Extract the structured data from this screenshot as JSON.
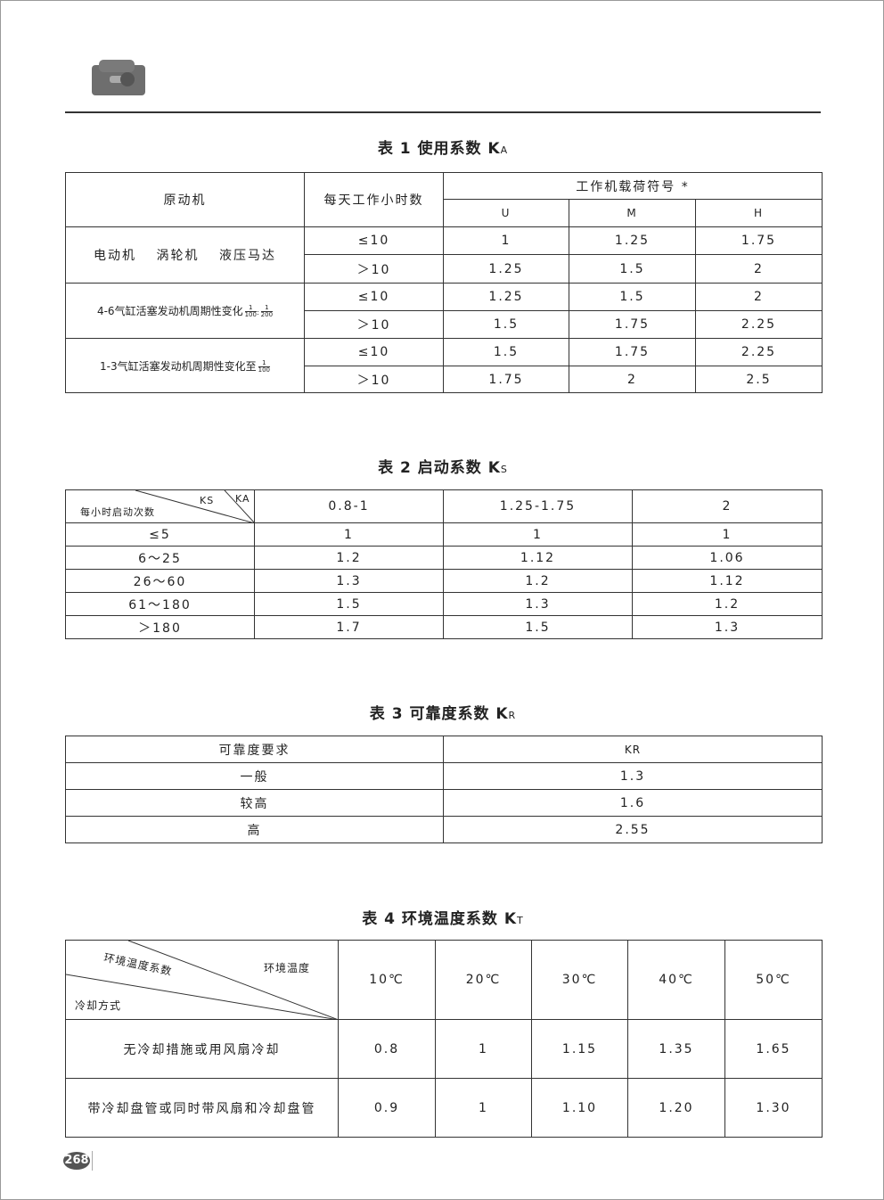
{
  "page_number": "268",
  "table1": {
    "title": "表 1  使用系数 K",
    "title_sub": "A",
    "headers": {
      "prime_mover": "原动机",
      "hours": "每天工作小时数",
      "load": "工作机载荷符号 *",
      "u": "U",
      "m": "M",
      "h": "H"
    },
    "groups": [
      {
        "label": "电动机　 涡轮机　 液压马达",
        "frac": [],
        "rows": [
          {
            "hours": "≤10",
            "u": "1",
            "m": "1.25",
            "h": "1.75"
          },
          {
            "hours": "＞10",
            "u": "1.25",
            "m": "1.5",
            "h": "2"
          }
        ]
      },
      {
        "label": "4-6气缸活塞发动机周期性变化",
        "frac": [
          {
            "num": "1",
            "den": "100"
          },
          {
            "num": "1",
            "den": "200"
          }
        ],
        "sep": ":",
        "rows": [
          {
            "hours": "≤10",
            "u": "1.25",
            "m": "1.5",
            "h": "2"
          },
          {
            "hours": "＞10",
            "u": "1.5",
            "m": "1.75",
            "h": "2.25"
          }
        ]
      },
      {
        "label": "1-3气缸活塞发动机周期性变化至",
        "frac": [
          {
            "num": "1",
            "den": "100"
          }
        ],
        "rows": [
          {
            "hours": "≤10",
            "u": "1.5",
            "m": "1.75",
            "h": "2.25"
          },
          {
            "hours": "＞10",
            "u": "1.75",
            "m": "2",
            "h": "2.5"
          }
        ]
      }
    ]
  },
  "table2": {
    "title": "表 2  启动系数 K",
    "title_sub": "S",
    "corner": {
      "row_label": "每小时启动次数",
      "ks": "KS",
      "ka": "KA"
    },
    "columns": [
      "0.8-1",
      "1.25-1.75",
      "2"
    ],
    "rows": [
      {
        "label": "≤5",
        "values": [
          "1",
          "1",
          "1"
        ]
      },
      {
        "label": "6～25",
        "values": [
          "1.2",
          "1.12",
          "1.06"
        ]
      },
      {
        "label": "26～60",
        "values": [
          "1.3",
          "1.2",
          "1.12"
        ]
      },
      {
        "label": "61～180",
        "values": [
          "1.5",
          "1.3",
          "1.2"
        ]
      },
      {
        "label": "＞180",
        "values": [
          "1.7",
          "1.5",
          "1.3"
        ]
      }
    ]
  },
  "table3": {
    "title": "表 3  可靠度系数 K",
    "title_sub": "R",
    "headers": [
      "可靠度要求",
      "KR"
    ],
    "rows": [
      {
        "label": "一般",
        "value": "1.3"
      },
      {
        "label": "较高",
        "value": "1.6"
      },
      {
        "label": "高",
        "value": "2.55"
      }
    ]
  },
  "table4": {
    "title": "表 4  环境温度系数 K",
    "title_sub": "T",
    "corner": {
      "coef": "环境温度系数",
      "temp": "环境温度",
      "cooling": "冷却方式"
    },
    "columns": [
      "10℃",
      "20℃",
      "30℃",
      "40℃",
      "50℃"
    ],
    "rows": [
      {
        "label": "无冷却措施或用风扇冷却",
        "values": [
          "0.8",
          "1",
          "1.15",
          "1.35",
          "1.65"
        ]
      },
      {
        "label": "带冷却盘管或同时带风扇和冷却盘管",
        "values": [
          "0.9",
          "1",
          "1.10",
          "1.20",
          "1.30"
        ]
      }
    ]
  }
}
